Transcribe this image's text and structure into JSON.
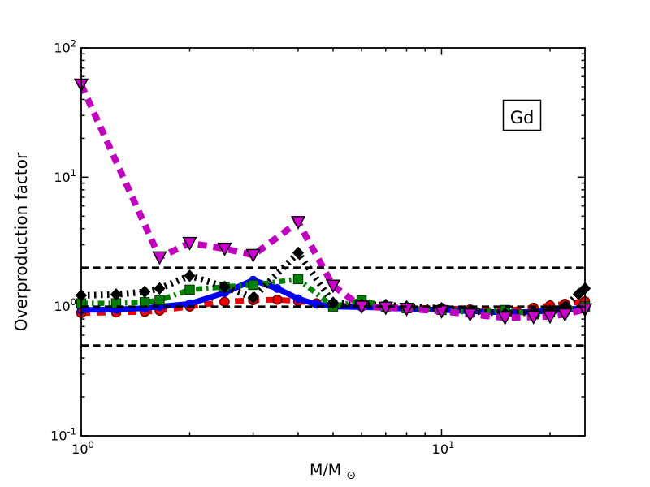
{
  "figure": {
    "background": "#ffffff"
  },
  "chart_data": {
    "type": "line",
    "title": "",
    "annotation": "Gd",
    "xlabel_base": "M/M",
    "xlabel_sub": "⊙",
    "ylabel": "Overproduction factor",
    "xscale": "log",
    "yscale": "log",
    "xlim": [
      1,
      25
    ],
    "ylim": [
      0.1,
      100
    ],
    "grid": false,
    "legend": "none",
    "x_ticks_major": [
      {
        "value": 1,
        "base": "10",
        "exp": "0"
      },
      {
        "value": 10,
        "base": "10",
        "exp": "1"
      }
    ],
    "x_ticks_minor": [
      2,
      3,
      4,
      5,
      6,
      7,
      8,
      9,
      20
    ],
    "y_ticks_major": [
      {
        "value": 0.1,
        "base": "10",
        "exp": "-1"
      },
      {
        "value": 1,
        "base": "10",
        "exp": "0"
      },
      {
        "value": 10,
        "base": "10",
        "exp": "1"
      },
      {
        "value": 100,
        "base": "10",
        "exp": "2"
      }
    ],
    "y_ticks_minor": [
      0.2,
      0.3,
      0.4,
      0.5,
      0.6,
      0.7,
      0.8,
      0.9,
      2,
      3,
      4,
      5,
      6,
      7,
      8,
      9,
      20,
      30,
      40,
      50,
      60,
      70,
      80,
      90
    ],
    "reference_lines": {
      "y_values": [
        0.5,
        1.0,
        2.0
      ],
      "color": "#000000",
      "linestyle": "dashed",
      "linewidth": 2.7,
      "dash": [
        9,
        5.5
      ]
    },
    "series": [
      {
        "name": "red-thick-dashed-circles",
        "color": "#ee0000",
        "linestyle": "dashed",
        "linewidth": 7,
        "dash": [
          11,
          8
        ],
        "marker": "circle",
        "marker_fill": "#ee0000",
        "marker_edge": "#700000",
        "marker_size": 11,
        "x": [
          1,
          1.25,
          1.5,
          1.65,
          2,
          2.5,
          3,
          3.5,
          4,
          4.5,
          5,
          6,
          7,
          8,
          10,
          12,
          15,
          18,
          20,
          22,
          25
        ],
        "y": [
          0.89,
          0.9,
          0.91,
          0.93,
          1.0,
          1.09,
          1.12,
          1.13,
          1.1,
          1.06,
          1.02,
          1.0,
          0.99,
          0.98,
          0.97,
          0.95,
          0.93,
          0.98,
          1.02,
          1.05,
          1.1
        ]
      },
      {
        "name": "blue-thick-solid-open-circles",
        "color": "#0000ee",
        "linestyle": "solid",
        "linewidth": 7,
        "dash": null,
        "marker": "circle-open",
        "marker_fill": "none",
        "marker_edge": "#0000ee",
        "marker_size": 9,
        "x": [
          1,
          1.25,
          1.5,
          1.65,
          2,
          2.5,
          3,
          3.5,
          4,
          4.5,
          5,
          6,
          7,
          8,
          10,
          12,
          15,
          18,
          20,
          22,
          25
        ],
        "y": [
          0.94,
          0.95,
          0.97,
          1.0,
          1.05,
          1.28,
          1.6,
          1.38,
          1.15,
          1.04,
          1.0,
          0.99,
          0.98,
          0.96,
          0.94,
          0.92,
          0.9,
          0.91,
          0.93,
          0.95,
          0.97
        ]
      },
      {
        "name": "green-dashdot-squares",
        "color": "#008000",
        "linestyle": "dashdot",
        "linewidth": 6.5,
        "dash": [
          8,
          5,
          2.5,
          5
        ],
        "marker": "square",
        "marker_fill": "#008000",
        "marker_edge": "#002200",
        "marker_size": 11.5,
        "x": [
          1,
          1.25,
          1.5,
          1.65,
          2,
          2.5,
          3,
          4,
          5,
          6,
          7,
          8,
          10,
          12,
          15,
          18,
          20,
          22,
          25
        ],
        "y": [
          1.06,
          1.06,
          1.08,
          1.12,
          1.35,
          1.42,
          1.47,
          1.63,
          1.0,
          1.12,
          1.0,
          0.97,
          0.94,
          0.9,
          0.94,
          0.87,
          0.9,
          0.95,
          1.0
        ]
      },
      {
        "name": "black-dotted-diamonds",
        "color": "#000000",
        "linestyle": "dotted",
        "linewidth": 8,
        "dash": [
          2.5,
          5.5
        ],
        "marker": "diamond",
        "marker_fill": "#000000",
        "marker_edge": "#000000",
        "marker_size": 14,
        "x": [
          1,
          1.25,
          1.5,
          1.65,
          2,
          2.5,
          3,
          4,
          5,
          6,
          7,
          8,
          10,
          12,
          15,
          18,
          20,
          22,
          24,
          25
        ],
        "y": [
          1.22,
          1.24,
          1.3,
          1.38,
          1.73,
          1.42,
          1.17,
          2.6,
          1.07,
          1.03,
          1.03,
          1.0,
          0.97,
          0.92,
          0.88,
          0.9,
          0.93,
          1.0,
          1.25,
          1.38
        ]
      },
      {
        "name": "magenta-thick-dashed-triangles",
        "color": "#bf00bf",
        "linestyle": "dashed",
        "linewidth": 8,
        "dash": [
          11,
          8
        ],
        "marker": "triangle-down",
        "marker_fill": "#cc00cc",
        "marker_edge": "#000000",
        "marker_size": 16,
        "x": [
          1,
          1.65,
          2,
          2.5,
          3,
          4,
          5,
          6,
          7,
          8,
          10,
          12,
          15,
          18,
          20,
          22,
          25
        ],
        "y": [
          52,
          2.4,
          3.1,
          2.8,
          2.5,
          4.5,
          1.45,
          1.0,
          0.98,
          0.96,
          0.92,
          0.87,
          0.82,
          0.83,
          0.84,
          0.87,
          0.95
        ]
      }
    ]
  }
}
